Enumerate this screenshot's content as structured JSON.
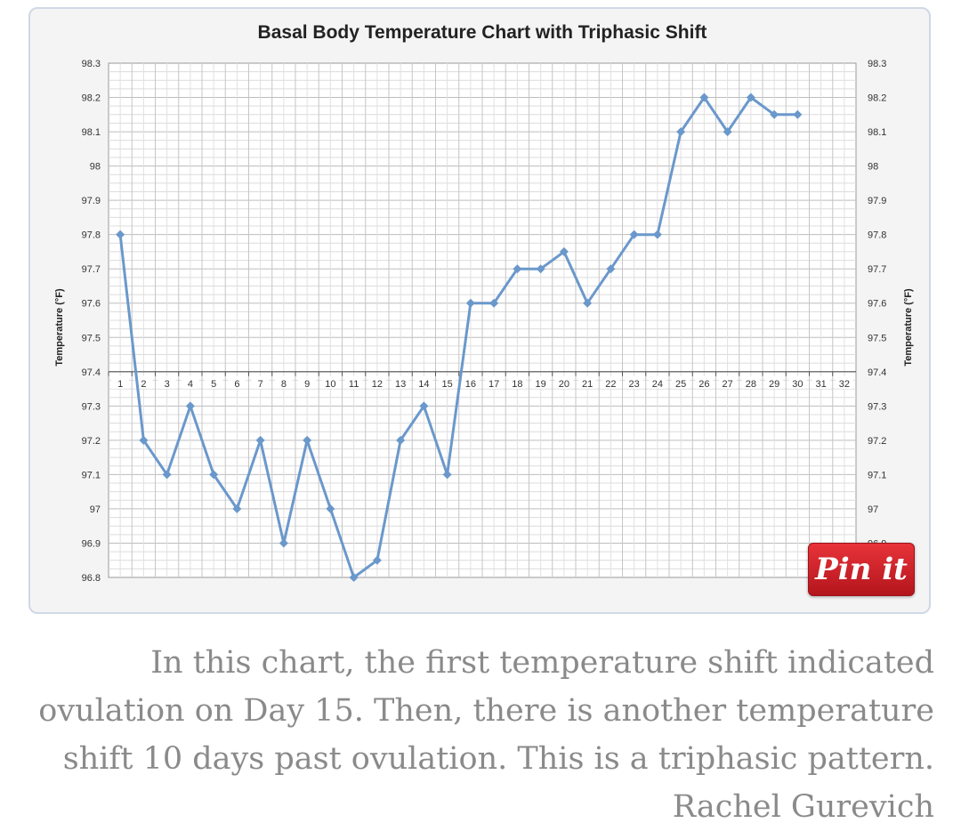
{
  "chart_data": {
    "type": "line",
    "title": "Basal Body Temperature Chart with Triphasic Shift",
    "ylabel": "Temperature (°F)",
    "ylim": [
      96.8,
      98.3
    ],
    "yticks": [
      "96.8",
      "96.9",
      "97",
      "97.1",
      "97.2",
      "97.3",
      "97.4",
      "97.5",
      "97.6",
      "97.7",
      "97.8",
      "97.9",
      "98",
      "98.1",
      "98.2",
      "98.3"
    ],
    "x_categories": [
      "1",
      "2",
      "3",
      "4",
      "5",
      "6",
      "7",
      "8",
      "9",
      "10",
      "11",
      "12",
      "13",
      "14",
      "15",
      "16",
      "17",
      "18",
      "19",
      "20",
      "21",
      "22",
      "23",
      "24",
      "25",
      "26",
      "27",
      "28",
      "29",
      "30",
      "31",
      "32"
    ],
    "x_axis_at": 97.4,
    "grid": true,
    "series": [
      {
        "color": "#6a98cb",
        "x": [
          1,
          2,
          3,
          4,
          5,
          6,
          7,
          8,
          9,
          10,
          11,
          12,
          13,
          14,
          15,
          16,
          17,
          18,
          19,
          20,
          21,
          22,
          23,
          24,
          25,
          26,
          27,
          28,
          29,
          30
        ],
        "values": [
          97.8,
          97.2,
          97.1,
          97.3,
          97.1,
          97.0,
          97.2,
          96.9,
          97.2,
          97.0,
          96.8,
          96.85,
          97.2,
          97.3,
          97.1,
          97.6,
          97.6,
          97.7,
          97.7,
          97.75,
          97.6,
          97.7,
          97.8,
          97.8,
          98.1,
          98.2,
          98.1,
          98.2,
          98.15,
          98.15
        ]
      }
    ]
  },
  "pin_button": {
    "label": "Pin it"
  },
  "caption": {
    "text": "In this chart, the first temperature shift indicated ovulation on Day 15. Then, there is another temperature shift 10 days past ovulation. This is a triphasic pattern.",
    "author": "Rachel Gurevich"
  }
}
